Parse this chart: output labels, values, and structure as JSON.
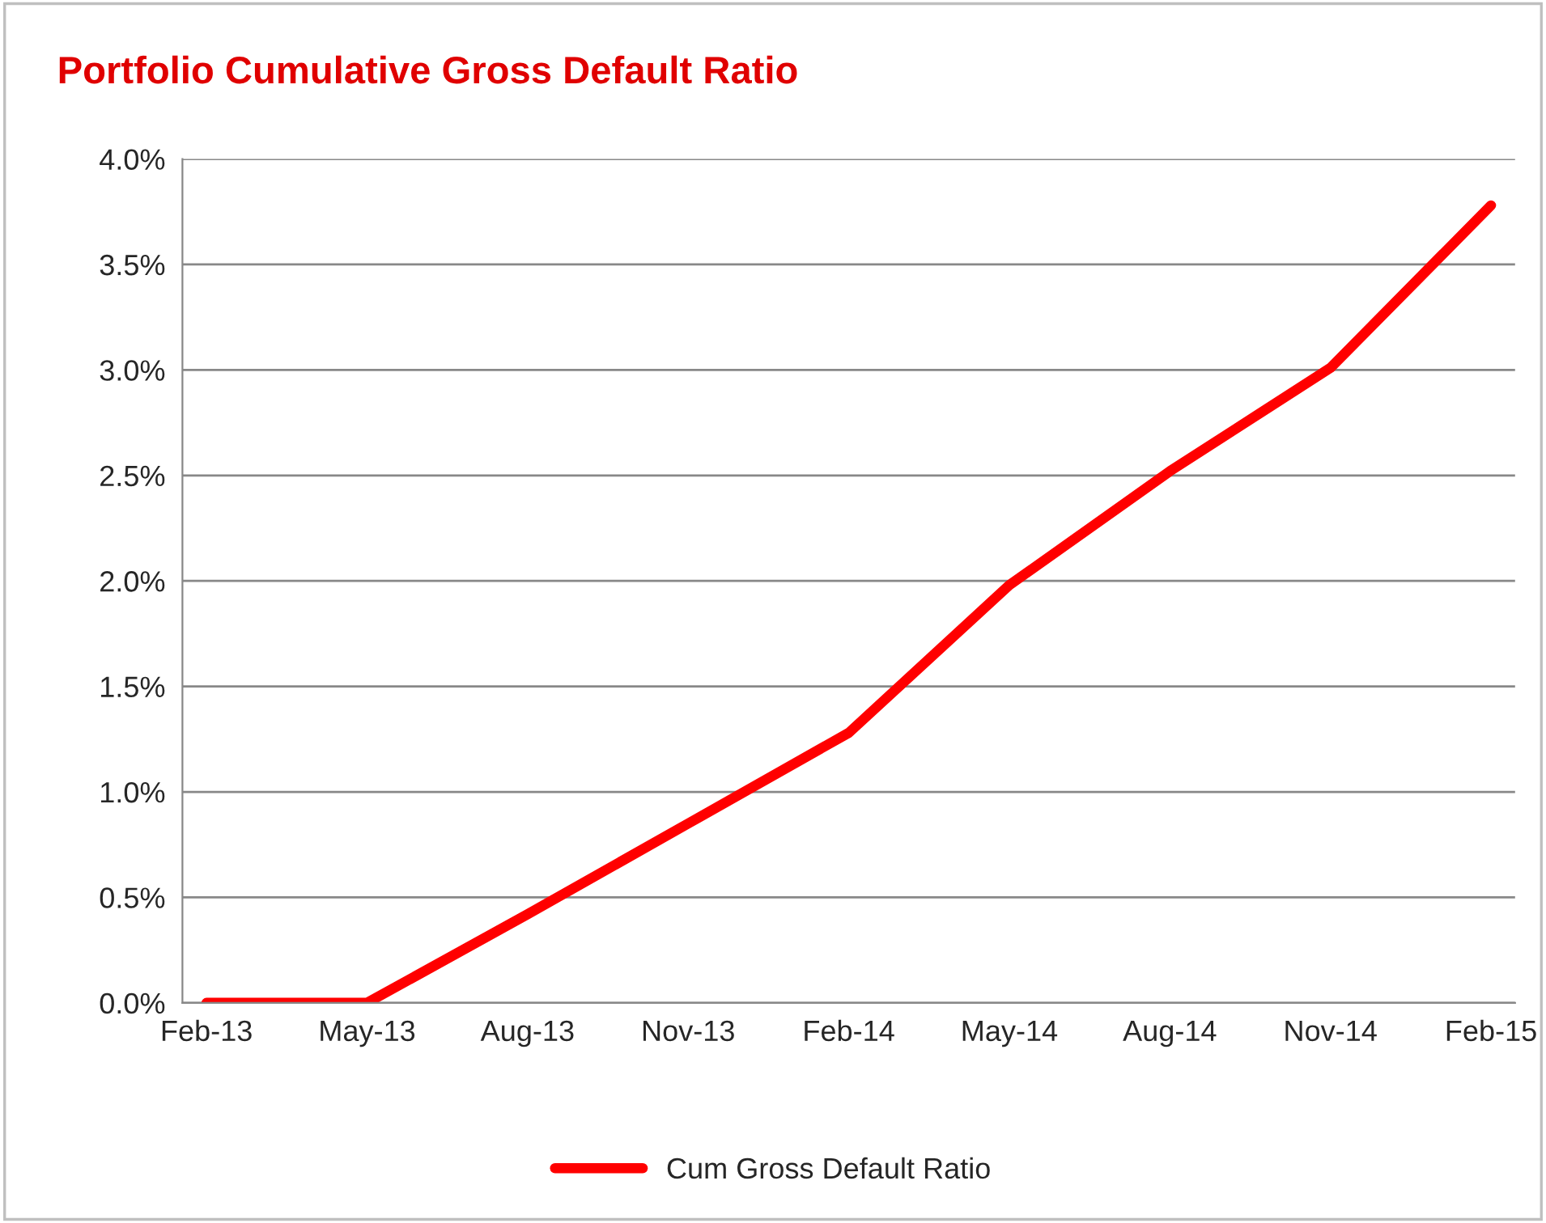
{
  "chart_data": {
    "type": "line",
    "title": "Portfolio Cumulative Gross Default Ratio",
    "categories": [
      "Feb-13",
      "May-13",
      "Aug-13",
      "Nov-13",
      "Feb-14",
      "May-14",
      "Aug-14",
      "Nov-14",
      "Feb-15"
    ],
    "series": [
      {
        "name": "Cum Gross Default Ratio",
        "color": "#ff0000",
        "values": [
          0.0,
          0.0,
          0.42,
          0.85,
          1.28,
          1.98,
          2.52,
          3.01,
          3.78
        ]
      }
    ],
    "ylim": [
      0,
      4
    ],
    "yticks": [
      {
        "value": 0,
        "label": "0.0%"
      },
      {
        "value": 0.5,
        "label": "0.5%"
      },
      {
        "value": 1,
        "label": "1.0%"
      },
      {
        "value": 1.5,
        "label": "1.5%"
      },
      {
        "value": 2,
        "label": "2.0%"
      },
      {
        "value": 2.5,
        "label": "2.5%"
      },
      {
        "value": 3,
        "label": "3.0%"
      },
      {
        "value": 3.5,
        "label": "3.5%"
      },
      {
        "value": 4,
        "label": "4.0%"
      }
    ],
    "grid": "y",
    "legend": "bottom",
    "line_style": "solid",
    "marker": "none"
  }
}
